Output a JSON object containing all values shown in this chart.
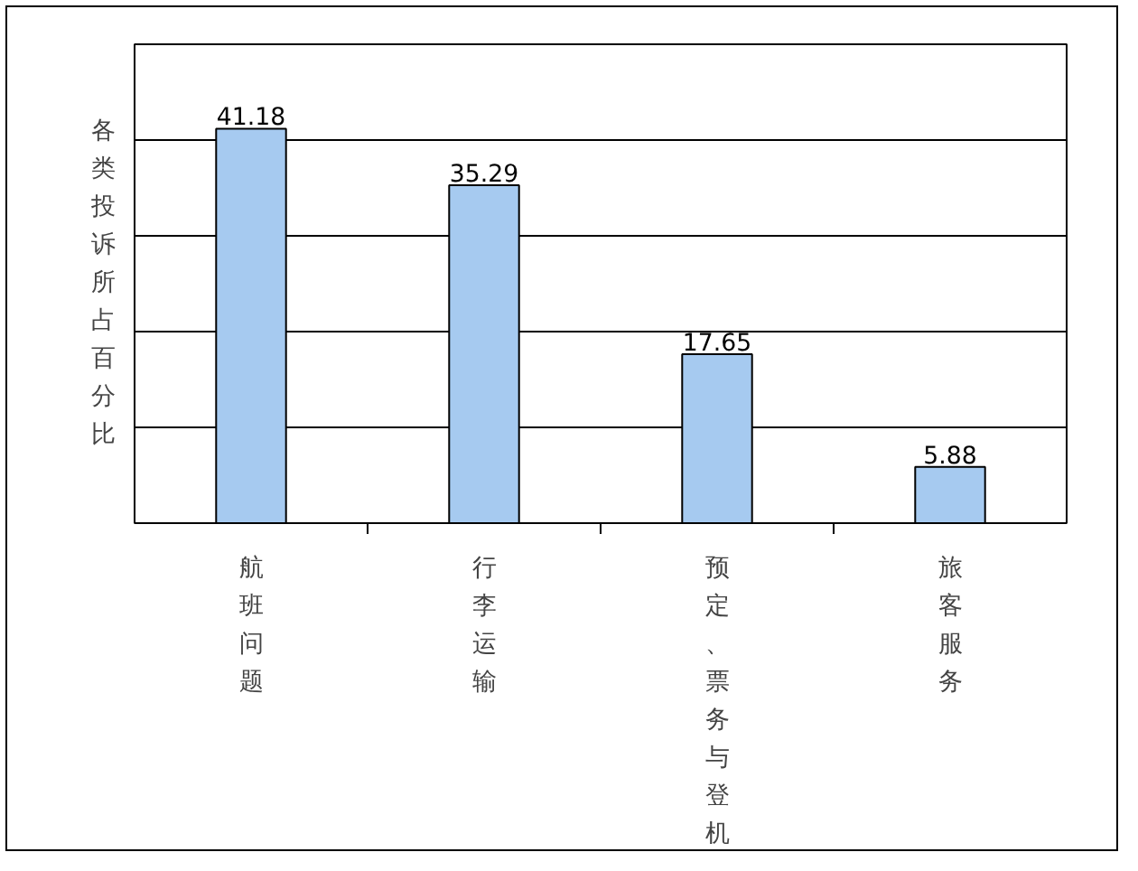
{
  "chart_data": {
    "type": "bar",
    "ylabel": "各类投诉所占百分比",
    "categories": [
      "航班问题",
      "行李运输",
      "预定、票务与登机",
      "旅客服务"
    ],
    "values": [
      41.18,
      35.29,
      17.65,
      5.88
    ],
    "color": "#a6caf0",
    "ylim": [
      0,
      50
    ],
    "yticks": [
      {
        "value": 0,
        "label": null
      },
      {
        "value": 10,
        "label": null
      },
      {
        "value": 20,
        "label": null
      },
      {
        "value": 30,
        "label": null
      },
      {
        "value": 40,
        "label": null
      },
      {
        "value": 50,
        "label": null
      }
    ],
    "grid": "y",
    "tick_labels": "x",
    "data_labels": true
  }
}
